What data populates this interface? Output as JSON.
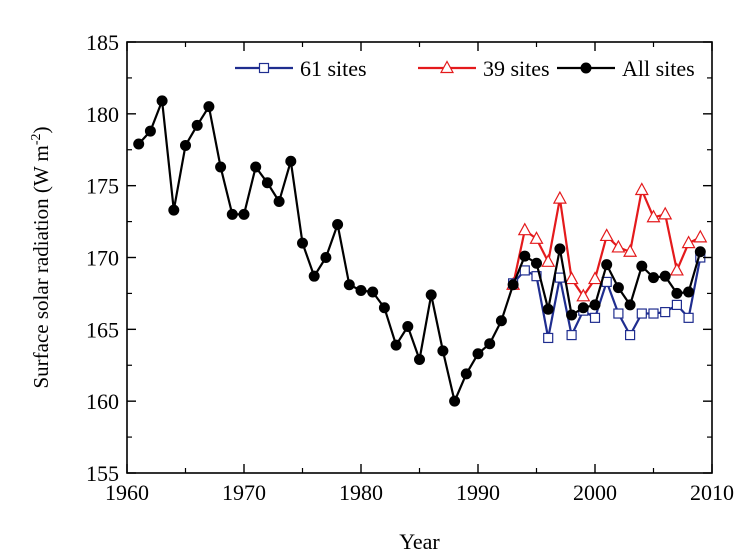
{
  "chart_data": {
    "type": "line",
    "xlabel": "Year",
    "ylabel_main": "Surface solar radiation (W m",
    "ylabel_sup": "-2",
    "ylabel_close": ")",
    "xlim": [
      1960,
      2010
    ],
    "ylim": [
      155,
      185
    ],
    "xticks": [
      1960,
      1970,
      1980,
      1990,
      2000,
      2010
    ],
    "yticks": [
      155,
      160,
      165,
      170,
      175,
      180,
      185
    ],
    "grid": false,
    "legend_position": "top-right",
    "series": [
      {
        "name": "61 sites",
        "color": "#1f2d8f",
        "marker": "open-square",
        "x": [
          1993,
          1994,
          1995,
          1996,
          1997,
          1998,
          1999,
          2000,
          2001,
          2002,
          2003,
          2004,
          2005,
          2006,
          2007,
          2008,
          2009
        ],
        "y": [
          168.2,
          169.1,
          168.7,
          164.4,
          168.6,
          164.6,
          166.3,
          165.8,
          168.3,
          166.1,
          164.6,
          166.1,
          166.1,
          166.2,
          166.7,
          165.8,
          170.0
        ]
      },
      {
        "name": "39 sites",
        "color": "#e41a1c",
        "marker": "open-triangle",
        "x": [
          1993,
          1994,
          1995,
          1996,
          1997,
          1998,
          1999,
          2000,
          2001,
          2002,
          2003,
          2004,
          2005,
          2006,
          2007,
          2008,
          2009
        ],
        "y": [
          168.1,
          171.9,
          171.3,
          169.7,
          174.1,
          168.5,
          167.3,
          168.5,
          171.5,
          170.7,
          170.4,
          174.7,
          172.8,
          173.0,
          169.1,
          171.0,
          171.4
        ]
      },
      {
        "name": "All sites",
        "color": "#000000",
        "marker": "filled-circle",
        "x": [
          1961,
          1962,
          1963,
          1964,
          1965,
          1966,
          1967,
          1968,
          1969,
          1970,
          1971,
          1972,
          1973,
          1974,
          1975,
          1976,
          1977,
          1978,
          1979,
          1980,
          1981,
          1982,
          1983,
          1984,
          1985,
          1986,
          1987,
          1988,
          1989,
          1990,
          1991,
          1992,
          1993,
          1994,
          1995,
          1996,
          1997,
          1998,
          1999,
          2000,
          2001,
          2002,
          2003,
          2004,
          2005,
          2006,
          2007,
          2008,
          2009
        ],
        "y": [
          177.9,
          178.8,
          180.9,
          173.3,
          177.8,
          179.2,
          180.5,
          176.3,
          173.0,
          173.0,
          176.3,
          175.2,
          173.9,
          176.7,
          171.0,
          168.7,
          170.0,
          172.3,
          168.1,
          167.7,
          167.6,
          166.5,
          163.9,
          165.2,
          162.9,
          167.4,
          163.5,
          160.0,
          161.9,
          163.3,
          164.0,
          165.6,
          168.1,
          170.1,
          169.6,
          166.4,
          170.6,
          166.0,
          166.5,
          166.7,
          169.5,
          167.9,
          166.7,
          169.4,
          168.6,
          168.7,
          167.5,
          167.6,
          170.4
        ]
      }
    ]
  }
}
